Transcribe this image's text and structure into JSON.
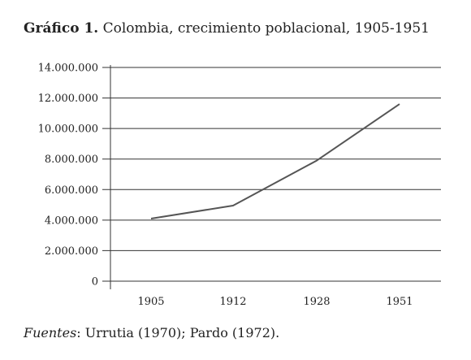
{
  "title_number": "Gráfico 1.",
  "title_text": "Colombia, crecimiento poblacional, 1905-1951",
  "source_label": "Fuentes",
  "source_text": ": Urrutia (1970); Pardo (1972).",
  "chart_data": {
    "type": "line",
    "title": "Gráfico 1. Colombia, crecimiento poblacional, 1905-1951",
    "categories": [
      "1905",
      "1912",
      "1928",
      "1951"
    ],
    "series": [
      {
        "values": [
          4100000,
          4950000,
          7900000,
          11600000
        ]
      }
    ],
    "yticks": [
      0,
      2000000,
      4000000,
      6000000,
      8000000,
      10000000,
      12000000,
      14000000
    ],
    "ytick_labels": [
      "0",
      "2.000.000",
      "4.000.000",
      "6.000.000",
      "8.000.000",
      "10.000.000",
      "12.000.000",
      "14.000.000"
    ],
    "ylim": [
      0,
      14000000
    ],
    "xlabel": "",
    "ylabel": "",
    "grid": "horizontal",
    "line_color": "#555555"
  }
}
